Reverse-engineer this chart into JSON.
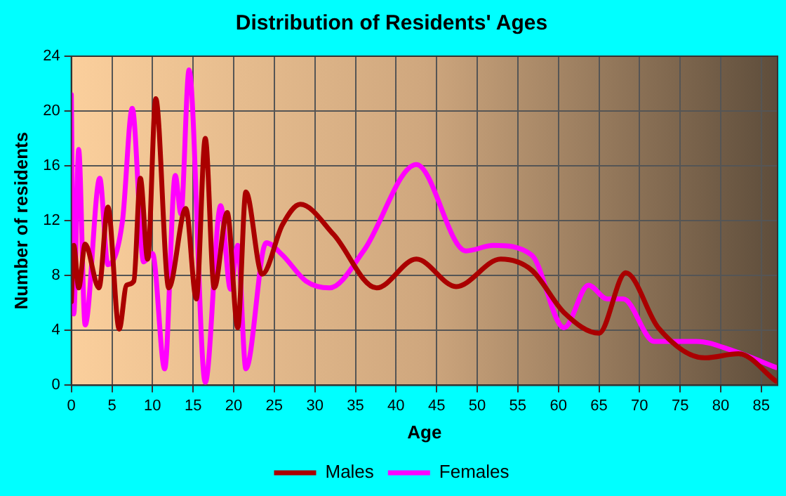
{
  "chart_data": {
    "type": "line",
    "title": "Distribution of Residents' Ages",
    "xlabel": "Age",
    "ylabel": "Number of residents",
    "xlim": [
      0,
      87
    ],
    "xticks": [
      0,
      5,
      10,
      15,
      20,
      25,
      30,
      35,
      40,
      45,
      50,
      55,
      60,
      65,
      70,
      75,
      80,
      85
    ],
    "ylim": [
      0,
      24
    ],
    "yticks": [
      0,
      4,
      8,
      12,
      16,
      20,
      24
    ],
    "grid": true,
    "legend": "bottom",
    "marker": "none",
    "series": [
      {
        "name": "Males",
        "color": "#aa0000",
        "x": [
          0,
          0.3,
          0.9,
          1.7,
          3.4,
          4.5,
          5.9,
          6.8,
          7.7,
          8.5,
          9.4,
          10.4,
          12,
          14.1,
          15.4,
          16.5,
          17.6,
          19.2,
          20.5,
          21.5,
          23.5,
          26,
          28.2,
          32.3,
          37.6,
          42.5,
          47.4,
          52.9,
          56.7,
          60.7,
          65,
          68.3,
          72.3,
          78,
          82.2,
          86.8
        ],
        "values": [
          6.1,
          10.2,
          7.1,
          10.3,
          7.1,
          13,
          4.1,
          7.3,
          7.6,
          15.1,
          9.2,
          20.9,
          7.1,
          12.9,
          6.3,
          18,
          7.1,
          12.6,
          4.2,
          14.1,
          8.1,
          11.7,
          13.2,
          11,
          7.1,
          9.2,
          7.2,
          9.2,
          8.4,
          5.3,
          3.8,
          8.2,
          4.2,
          2,
          2.3,
          0.3
        ]
      },
      {
        "name": "Females",
        "color": "#ff00ff",
        "x": [
          0,
          0.3,
          0.9,
          1.7,
          3.5,
          4.5,
          6.3,
          7.5,
          8.9,
          10,
          11.5,
          12.8,
          13.5,
          14.5,
          16.5,
          18.4,
          19.6,
          20.5,
          21.5,
          24,
          26,
          28.9,
          31.8,
          36,
          42.5,
          48.6,
          52,
          56.7,
          60.7,
          63.7,
          66,
          68,
          71.8,
          77,
          81.6,
          86.8
        ],
        "values": [
          21.2,
          5.2,
          17.2,
          4.4,
          15.1,
          8.8,
          12,
          20.2,
          9,
          9.6,
          1.2,
          15.3,
          12.5,
          23,
          0.2,
          13.1,
          7,
          10.2,
          1.2,
          10.4,
          9.5,
          7.6,
          7.1,
          9.8,
          16.1,
          9.8,
          10.2,
          9.5,
          4.2,
          7.3,
          6.3,
          6.3,
          3.2,
          3.2,
          2.5,
          1.3
        ]
      }
    ]
  }
}
